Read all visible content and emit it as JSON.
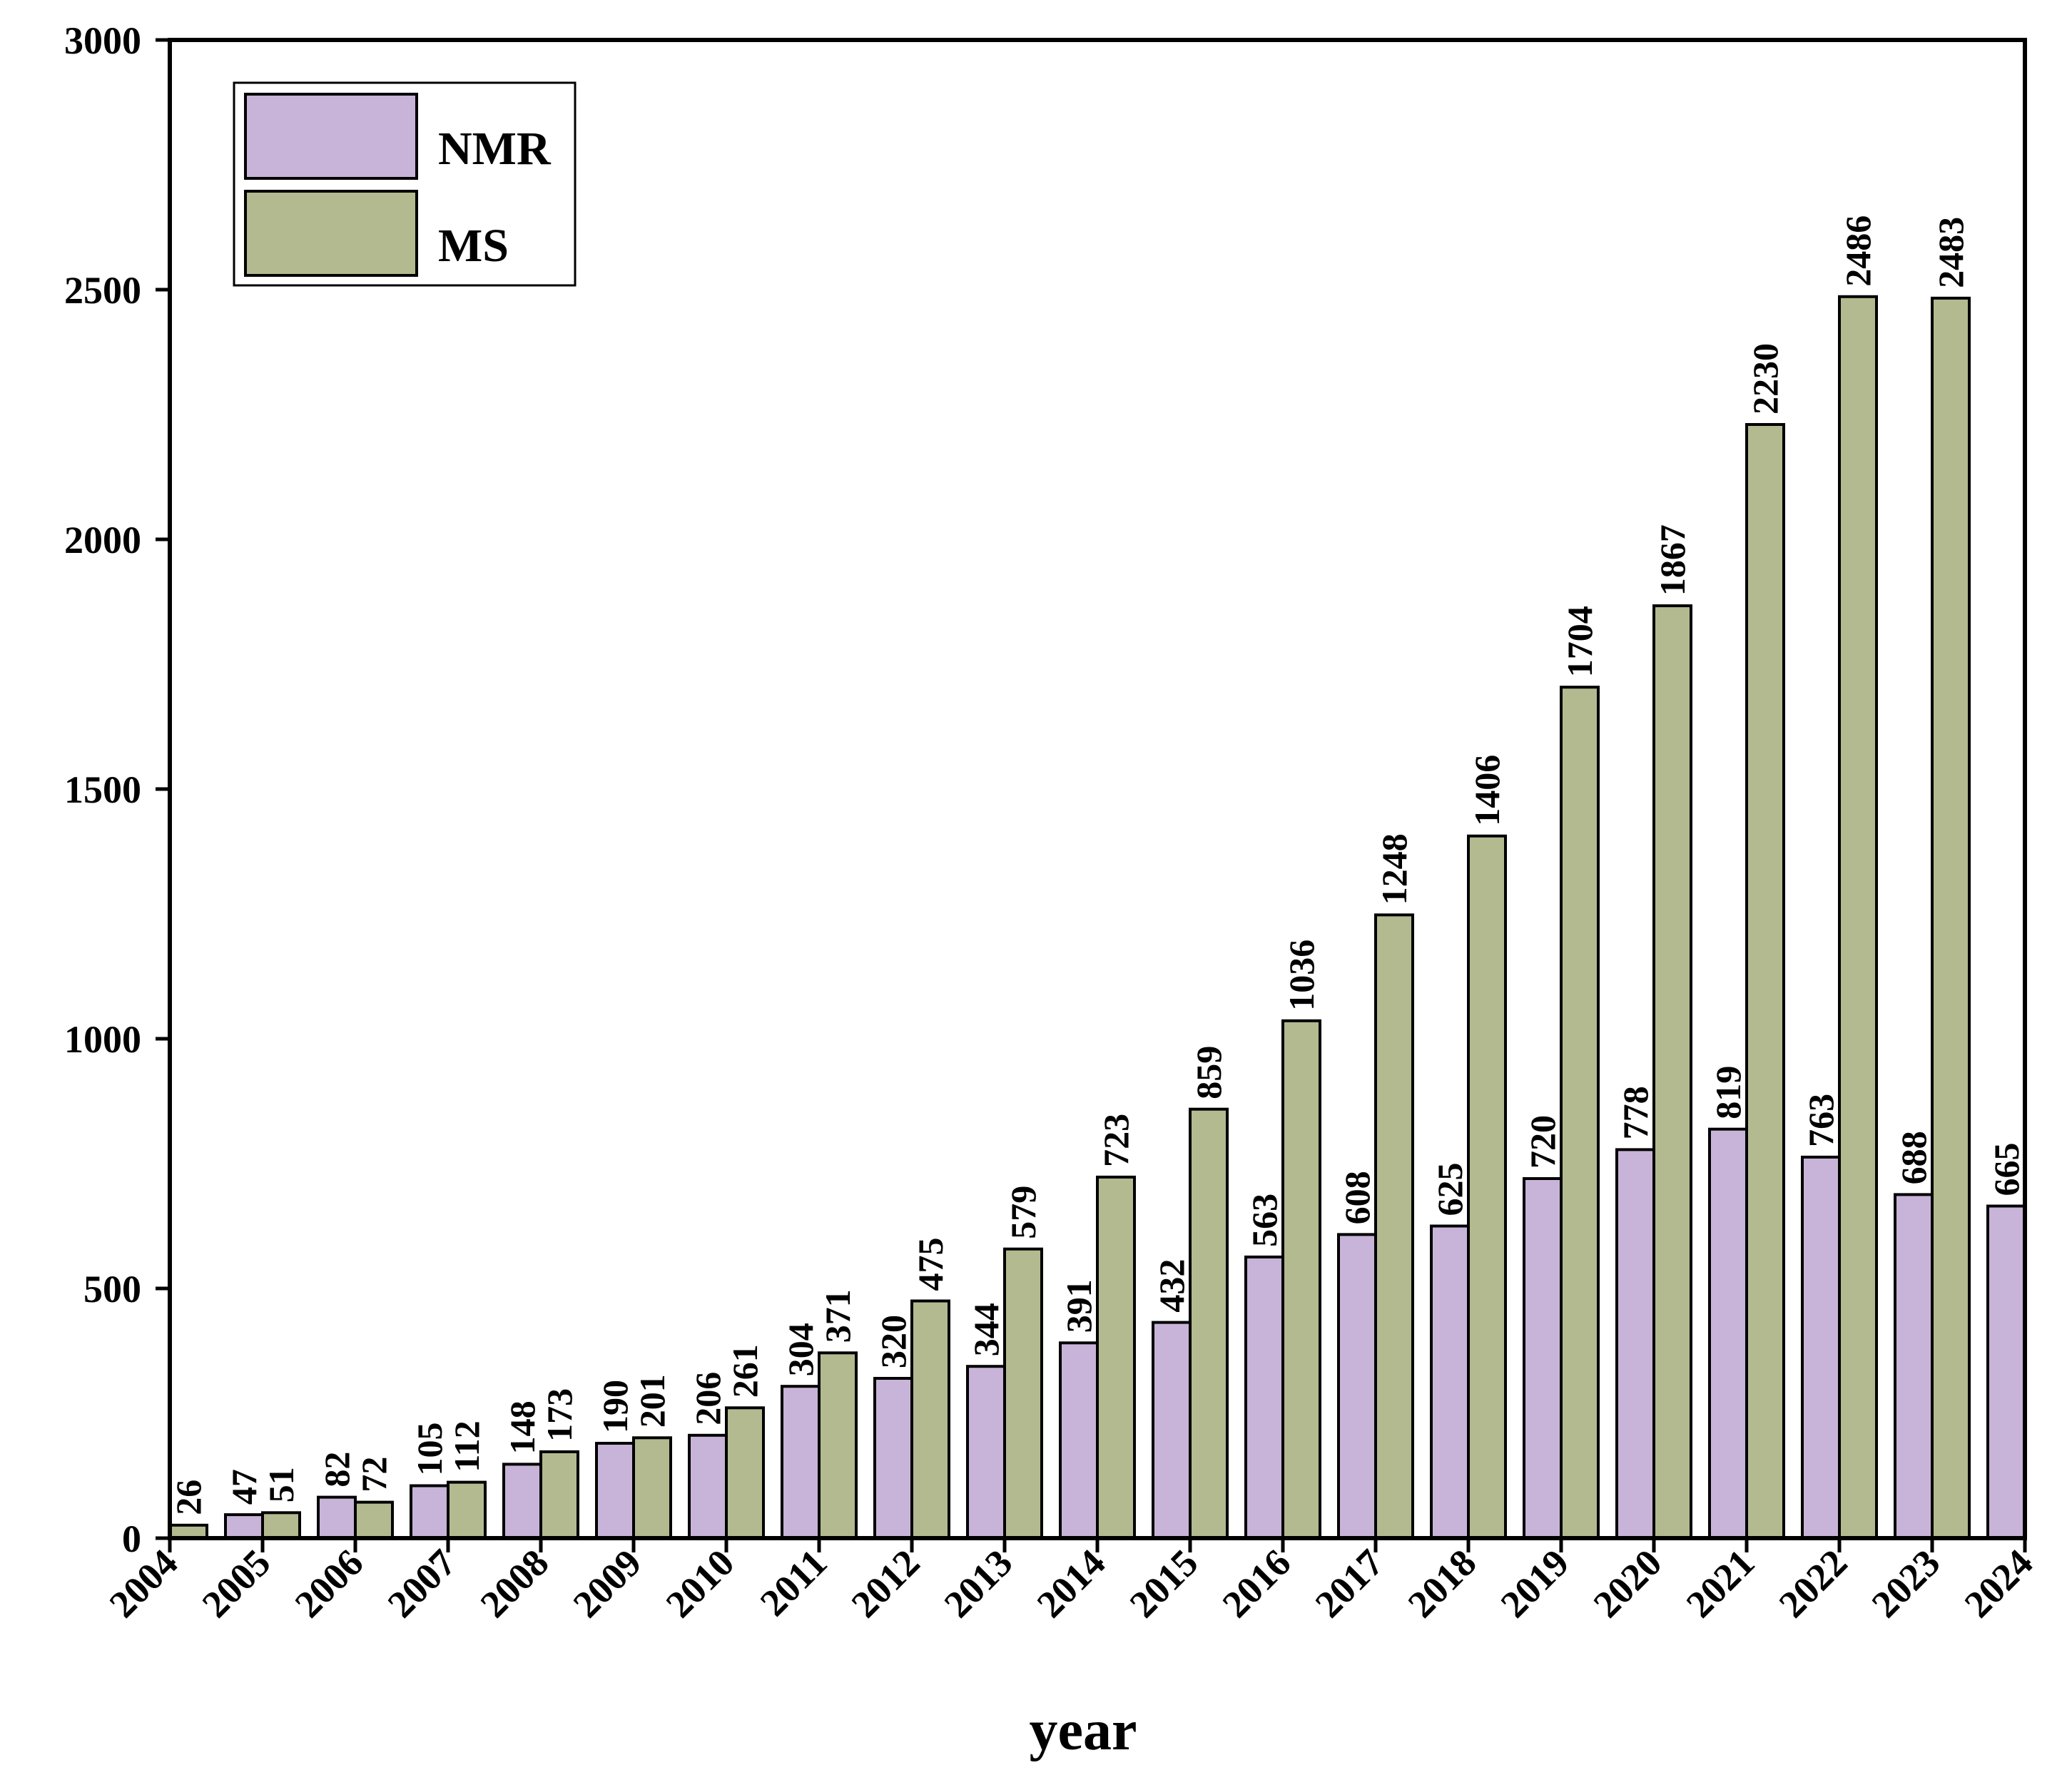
{
  "chart_data": {
    "type": "bar",
    "title": "",
    "xlabel": "year",
    "ylabel": "",
    "ylim": [
      0,
      3000
    ],
    "yticks": [
      0,
      500,
      1000,
      1500,
      2000,
      2500,
      3000
    ],
    "xticks": [
      "2004",
      "2005",
      "2006",
      "2007",
      "2008",
      "2009",
      "2010",
      "2011",
      "2012",
      "2013",
      "2014",
      "2015",
      "2016",
      "2017",
      "2018",
      "2019",
      "2020",
      "2021",
      "2022",
      "2023",
      "2024"
    ],
    "legend_position": "top-left",
    "series": [
      {
        "name": "NMR",
        "color": "#c8b4d8",
        "points": [
          {
            "x": 2005,
            "value": 47
          },
          {
            "x": 2006,
            "value": 82
          },
          {
            "x": 2007,
            "value": 105
          },
          {
            "x": 2008,
            "value": 148
          },
          {
            "x": 2009,
            "value": 190
          },
          {
            "x": 2010,
            "value": 206
          },
          {
            "x": 2011,
            "value": 304
          },
          {
            "x": 2012,
            "value": 320
          },
          {
            "x": 2013,
            "value": 344
          },
          {
            "x": 2014,
            "value": 391
          },
          {
            "x": 2015,
            "value": 432
          },
          {
            "x": 2016,
            "value": 563
          },
          {
            "x": 2017,
            "value": 608
          },
          {
            "x": 2018,
            "value": 625
          },
          {
            "x": 2019,
            "value": 720
          },
          {
            "x": 2020,
            "value": 778
          },
          {
            "x": 2021,
            "value": 819
          },
          {
            "x": 2022,
            "value": 763
          },
          {
            "x": 2023,
            "value": 688
          },
          {
            "x": 2024,
            "value": 665
          }
        ]
      },
      {
        "name": "MS",
        "color": "#b4ba90",
        "points": [
          {
            "x": 2004,
            "value": 26
          },
          {
            "x": 2005,
            "value": 51
          },
          {
            "x": 2006,
            "value": 72
          },
          {
            "x": 2007,
            "value": 112
          },
          {
            "x": 2008,
            "value": 173
          },
          {
            "x": 2009,
            "value": 201
          },
          {
            "x": 2010,
            "value": 261
          },
          {
            "x": 2011,
            "value": 371
          },
          {
            "x": 2012,
            "value": 475
          },
          {
            "x": 2013,
            "value": 579
          },
          {
            "x": 2014,
            "value": 723
          },
          {
            "x": 2015,
            "value": 859
          },
          {
            "x": 2016,
            "value": 1036
          },
          {
            "x": 2017,
            "value": 1248
          },
          {
            "x": 2018,
            "value": 1406
          },
          {
            "x": 2019,
            "value": 1704
          },
          {
            "x": 2020,
            "value": 1867
          },
          {
            "x": 2021,
            "value": 2230
          },
          {
            "x": 2022,
            "value": 2486
          },
          {
            "x": 2023,
            "value": 2483
          }
        ]
      }
    ]
  }
}
